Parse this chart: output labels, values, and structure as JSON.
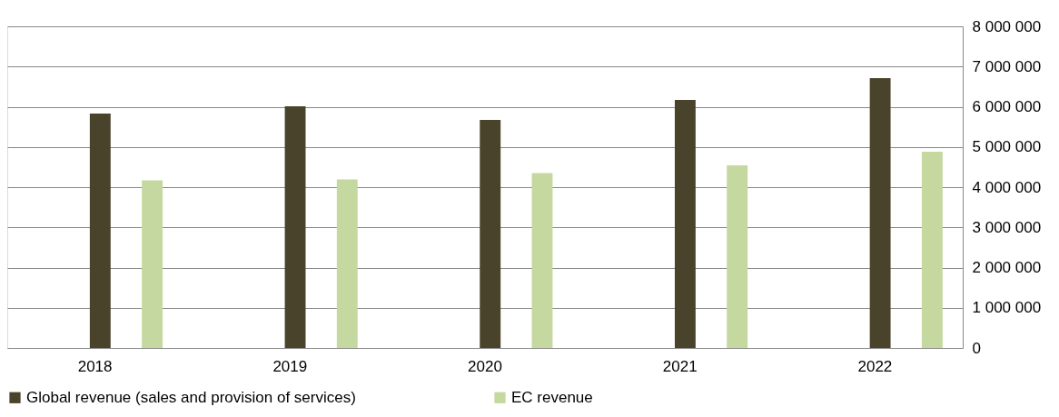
{
  "chart_data": {
    "type": "bar",
    "categories": [
      "2018",
      "2019",
      "2020",
      "2021",
      "2022"
    ],
    "series": [
      {
        "name": "Global revenue (sales and provision of services)",
        "color": "#4a432c",
        "values": [
          5830000,
          6010000,
          5670000,
          6170000,
          6710000
        ]
      },
      {
        "name": "EC revenue",
        "color": "#c4d89f",
        "values": [
          4170000,
          4190000,
          4350000,
          4540000,
          4880000
        ]
      }
    ],
    "ylim": [
      0,
      8000000
    ],
    "yticks": [
      {
        "value": 0,
        "label": "0"
      },
      {
        "value": 1000000,
        "label": "1 000 000"
      },
      {
        "value": 2000000,
        "label": "2 000 000"
      },
      {
        "value": 3000000,
        "label": "3 000 000"
      },
      {
        "value": 4000000,
        "label": "4 000 000"
      },
      {
        "value": 5000000,
        "label": "5 000 000"
      },
      {
        "value": 6000000,
        "label": "6 000 000"
      },
      {
        "value": 7000000,
        "label": "7 000 000"
      },
      {
        "value": 8000000,
        "label": "8 000 000"
      }
    ],
    "grid": "y",
    "legend": "bottom"
  }
}
